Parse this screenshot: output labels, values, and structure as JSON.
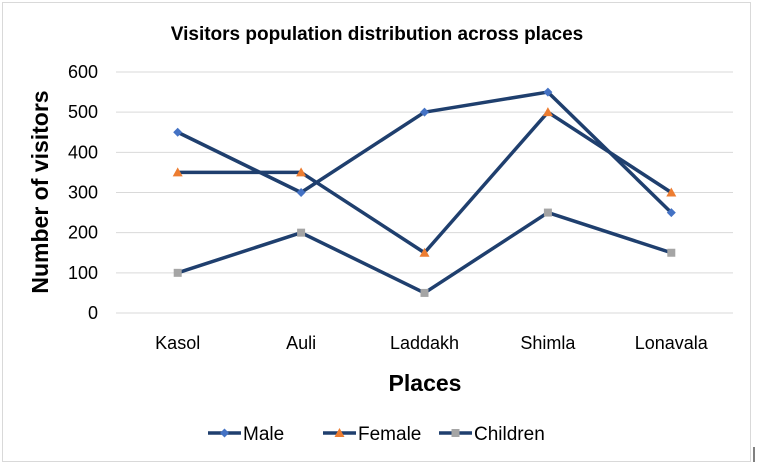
{
  "chart_data": {
    "type": "line",
    "title": "Visitors population distribution across places",
    "xlabel": "Places",
    "ylabel": "Number of visitors",
    "categories": [
      "Kasol",
      "Auli",
      "Laddakh",
      "Shimla",
      "Lonavala"
    ],
    "ylim": [
      0,
      600
    ],
    "yticks": [
      0,
      100,
      200,
      300,
      400,
      500,
      600
    ],
    "grid": true,
    "legend_position": "bottom",
    "line_color": "#1f3f6e",
    "series": [
      {
        "name": "Male",
        "values": [
          450,
          300,
          500,
          550,
          250
        ],
        "marker": "diamond",
        "marker_color": "#4472c4"
      },
      {
        "name": "Female",
        "values": [
          350,
          350,
          150,
          500,
          300
        ],
        "marker": "triangle",
        "marker_color": "#ed7d31"
      },
      {
        "name": "Children",
        "values": [
          100,
          200,
          50,
          250,
          150
        ],
        "marker": "square",
        "marker_color": "#a5a5a5"
      }
    ]
  }
}
